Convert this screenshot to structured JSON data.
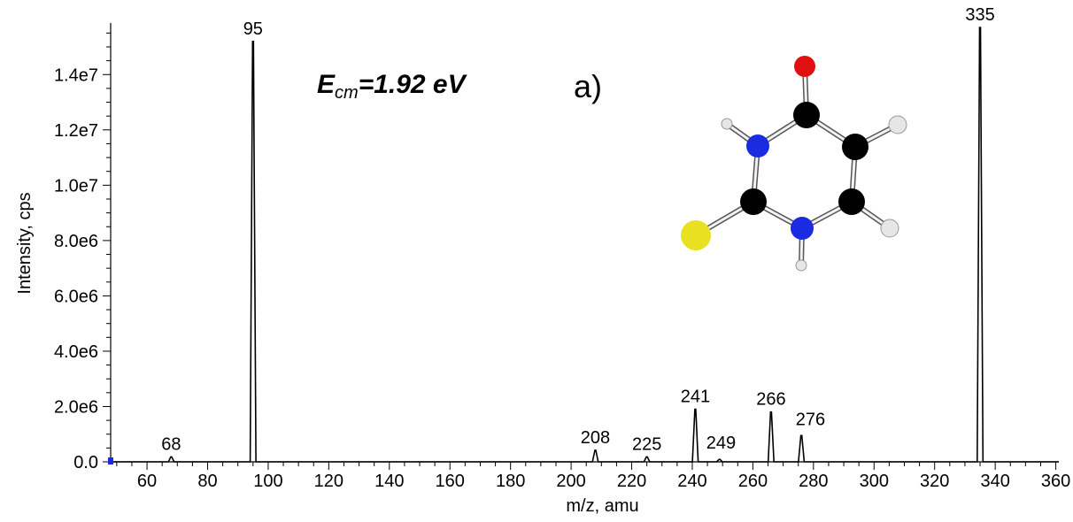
{
  "chart_data": {
    "type": "line",
    "title": "",
    "xlabel": "m/z, amu",
    "ylabel": "Intensity, cps",
    "xlim": [
      48,
      361
    ],
    "ylim": [
      0,
      15800000
    ],
    "x_ticks": [
      60,
      80,
      100,
      120,
      140,
      160,
      180,
      200,
      220,
      240,
      260,
      280,
      300,
      320,
      340,
      360
    ],
    "y_ticks": [
      {
        "value": 0,
        "label": "0.0"
      },
      {
        "value": 2000000,
        "label": "2.0e6"
      },
      {
        "value": 4000000,
        "label": "4.0e6"
      },
      {
        "value": 6000000,
        "label": "6.0e6"
      },
      {
        "value": 8000000,
        "label": "8.0e6"
      },
      {
        "value": 10000000,
        "label": "1.0e7"
      },
      {
        "value": 12000000,
        "label": "1.2e7"
      },
      {
        "value": 14000000,
        "label": "1.4e7"
      }
    ],
    "grid": false,
    "legend": "none",
    "series": [
      {
        "color": "#000000",
        "peaks": [
          {
            "mz": 68,
            "intensity": 180000,
            "label": "68"
          },
          {
            "mz": 95,
            "intensity": 15200000,
            "label": "95"
          },
          {
            "mz": 208,
            "intensity": 420000,
            "label": "208"
          },
          {
            "mz": 225,
            "intensity": 180000,
            "label": "225"
          },
          {
            "mz": 241,
            "intensity": 1900000,
            "label": "241"
          },
          {
            "mz": 249,
            "intensity": 90000,
            "label": "249"
          },
          {
            "mz": 266,
            "intensity": 1800000,
            "label": "266"
          },
          {
            "mz": 276,
            "intensity": 950000,
            "label": "276"
          },
          {
            "mz": 335,
            "intensity": 15700000,
            "label": "335"
          }
        ]
      }
    ],
    "annotations": {
      "energy_main": "E",
      "energy_sub": "cm",
      "energy_value": "=1.92 eV",
      "panel": "a)"
    },
    "molecule_colors": {
      "carbon": "#000000",
      "nitrogen": "#1a2be0",
      "oxygen": "#e01010",
      "sulfur": "#e8e020",
      "hydrogen": "#e6e6e6"
    }
  }
}
